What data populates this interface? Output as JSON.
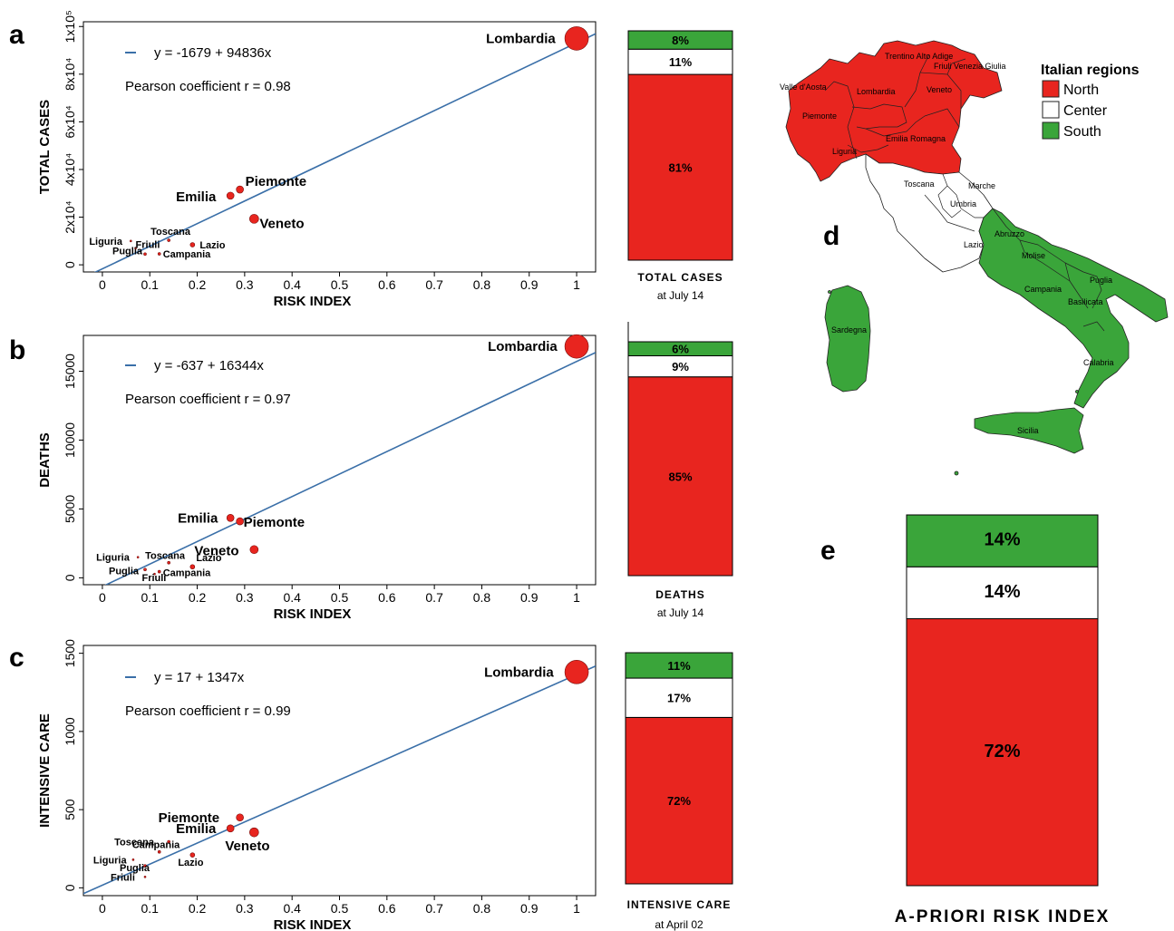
{
  "panels": {
    "a": "a",
    "b": "b",
    "c": "c",
    "d": "d",
    "e": "e"
  },
  "colors": {
    "north": "#e8251f",
    "center": "#ffffff",
    "south": "#3aa53a",
    "line": "#3a6fa8",
    "point": "#e8251f"
  },
  "chart_data": [
    {
      "type": "scatter",
      "panel": "a",
      "xlabel": "RISK INDEX",
      "ylabel": "TOTAL CASES",
      "xlim": [
        -0.04,
        1.04
      ],
      "ylim": [
        -3000,
        102000
      ],
      "xticks": [
        0,
        0.1,
        0.2,
        0.3,
        0.4,
        0.5,
        0.6,
        0.7,
        0.8,
        0.9,
        1
      ],
      "xtick_labels": [
        "0",
        "0.1",
        "0.2",
        "0.3",
        "0.4",
        "0.5",
        "0.6",
        "0.7",
        "0.8",
        "0.9",
        "1"
      ],
      "yticks": [
        0,
        20000,
        40000,
        60000,
        80000,
        100000
      ],
      "ytick_labels": [
        "0",
        "2x10⁴",
        "4x10⁴",
        "6x10⁴",
        "8x10⁴",
        "1x10⁵"
      ],
      "regression": {
        "intercept": -1679,
        "slope": 94836,
        "equation": "y = -1679 + 94836x",
        "pearson": "Pearson coefficient r = 0.98"
      },
      "points": [
        {
          "name": "Lombardia",
          "x": 1.0,
          "y": 95000,
          "size": 13,
          "label_style": "big",
          "dx": -100,
          "dy": 5
        },
        {
          "name": "Piemonte",
          "x": 0.29,
          "y": 31600,
          "size": 4,
          "label_style": "big",
          "dx": 6,
          "dy": -4
        },
        {
          "name": "Emilia",
          "x": 0.27,
          "y": 29000,
          "size": 4,
          "label_style": "big",
          "dx": -60,
          "dy": 6
        },
        {
          "name": "Veneto",
          "x": 0.32,
          "y": 19300,
          "size": 5,
          "label_style": "big",
          "dx": 6,
          "dy": 10
        },
        {
          "name": "Toscana",
          "x": 0.14,
          "y": 10300,
          "size": 1.5,
          "label_style": "small",
          "dx": -20,
          "dy": -6
        },
        {
          "name": "Lazio",
          "x": 0.19,
          "y": 8400,
          "size": 2.5,
          "label_style": "small",
          "dx": 8,
          "dy": 4
        },
        {
          "name": "Liguria",
          "x": 0.06,
          "y": 10000,
          "size": 1,
          "label_style": "small",
          "dx": -46,
          "dy": 4
        },
        {
          "name": "Friuli",
          "x": 0.07,
          "y": 7000,
          "size": 1,
          "label_style": "small",
          "dx": 0,
          "dy": 0
        },
        {
          "name": "Puglia",
          "x": 0.09,
          "y": 4500,
          "size": 1.5,
          "label_style": "small",
          "dx": -36,
          "dy": 0
        },
        {
          "name": "Campania",
          "x": 0.12,
          "y": 4600,
          "size": 1.5,
          "label_style": "small",
          "dx": 4,
          "dy": 4
        }
      ]
    },
    {
      "type": "scatter",
      "panel": "b",
      "xlabel": "RISK INDEX",
      "ylabel": "DEATHS",
      "xlim": [
        -0.04,
        1.04
      ],
      "ylim": [
        -500,
        17600
      ],
      "xticks": [
        0,
        0.1,
        0.2,
        0.3,
        0.4,
        0.5,
        0.6,
        0.7,
        0.8,
        0.9,
        1
      ],
      "xtick_labels": [
        "0",
        "0.1",
        "0.2",
        "0.3",
        "0.4",
        "0.5",
        "0.6",
        "0.7",
        "0.8",
        "0.9",
        "1"
      ],
      "yticks": [
        0,
        5000,
        10000,
        15000
      ],
      "ytick_labels": [
        "0",
        "5000",
        "10000",
        "15000"
      ],
      "regression": {
        "intercept": -637,
        "slope": 16344,
        "equation": "y =  -637 + 16344x",
        "pearson": "Pearson coefficient r = 0.97"
      },
      "points": [
        {
          "name": "Lombardia",
          "x": 1.0,
          "y": 16800,
          "size": 13,
          "label_style": "big",
          "dx": -98,
          "dy": 5
        },
        {
          "name": "Emilia",
          "x": 0.27,
          "y": 4350,
          "size": 4,
          "label_style": "big",
          "dx": -58,
          "dy": 5
        },
        {
          "name": "Piemonte",
          "x": 0.29,
          "y": 4100,
          "size": 4,
          "label_style": "big",
          "dx": 4,
          "dy": 6
        },
        {
          "name": "Veneto",
          "x": 0.32,
          "y": 2050,
          "size": 4.5,
          "label_style": "big",
          "dx": -66,
          "dy": 6
        },
        {
          "name": "Toscana",
          "x": 0.14,
          "y": 1100,
          "size": 1.5,
          "label_style": "small",
          "dx": -26,
          "dy": -4
        },
        {
          "name": "Lazio",
          "x": 0.19,
          "y": 800,
          "size": 2.5,
          "label_style": "small",
          "dx": 4,
          "dy": -6
        },
        {
          "name": "Liguria",
          "x": 0.075,
          "y": 1500,
          "size": 1,
          "label_style": "small",
          "dx": -46,
          "dy": 4
        },
        {
          "name": "Puglia",
          "x": 0.09,
          "y": 600,
          "size": 1.5,
          "label_style": "small",
          "dx": -40,
          "dy": 5
        },
        {
          "name": "Friuli",
          "x": 0.11,
          "y": 280,
          "size": 1,
          "label_style": "small",
          "dx": -14,
          "dy": 8
        },
        {
          "name": "Campania",
          "x": 0.12,
          "y": 450,
          "size": 1.5,
          "label_style": "small",
          "dx": 4,
          "dy": 5
        }
      ]
    },
    {
      "type": "scatter",
      "panel": "c",
      "xlabel": "RISK INDEX",
      "ylabel": "INTENSIVE CARE",
      "xlim": [
        -0.04,
        1.04
      ],
      "ylim": [
        -50,
        1550
      ],
      "xticks": [
        0,
        0.1,
        0.2,
        0.3,
        0.4,
        0.5,
        0.6,
        0.7,
        0.8,
        0.9,
        1
      ],
      "xtick_labels": [
        "0",
        "0.1",
        "0.2",
        "0.3",
        "0.4",
        "0.5",
        "0.6",
        "0.7",
        "0.8",
        "0.9",
        "1"
      ],
      "yticks": [
        0,
        500,
        1000,
        1500
      ],
      "ytick_labels": [
        "0",
        "500",
        "1000",
        "1500"
      ],
      "regression": {
        "intercept": 17,
        "slope": 1347,
        "equation": "y =  17 + 1347x",
        "pearson": "Pearson coefficient r = 0.99"
      },
      "points": [
        {
          "name": "Lombardia",
          "x": 1.0,
          "y": 1380,
          "size": 13,
          "label_style": "big",
          "dx": -102,
          "dy": 5
        },
        {
          "name": "Piemonte",
          "x": 0.29,
          "y": 450,
          "size": 4,
          "label_style": "big",
          "dx": -90,
          "dy": 5
        },
        {
          "name": "Emilia",
          "x": 0.27,
          "y": 380,
          "size": 4,
          "label_style": "big",
          "dx": -60,
          "dy": 5
        },
        {
          "name": "Veneto",
          "x": 0.32,
          "y": 355,
          "size": 5,
          "label_style": "big",
          "dx": -32,
          "dy": 20
        },
        {
          "name": "Toscana",
          "x": 0.14,
          "y": 295,
          "size": 1.5,
          "label_style": "small",
          "dx": -60,
          "dy": 4
        },
        {
          "name": "Campania",
          "x": 0.12,
          "y": 230,
          "size": 1.5,
          "label_style": "small",
          "dx": -30,
          "dy": -4
        },
        {
          "name": "Lazio",
          "x": 0.19,
          "y": 210,
          "size": 2.5,
          "label_style": "small",
          "dx": -16,
          "dy": 12
        },
        {
          "name": "Liguria",
          "x": 0.065,
          "y": 180,
          "size": 1,
          "label_style": "small",
          "dx": -44,
          "dy": 4
        },
        {
          "name": "Puglia",
          "x": 0.09,
          "y": 140,
          "size": 1.5,
          "label_style": "small",
          "dx": -28,
          "dy": 6
        },
        {
          "name": "Friuli",
          "x": 0.09,
          "y": 70,
          "size": 1,
          "label_style": "small",
          "dx": -38,
          "dy": 4
        }
      ]
    },
    {
      "type": "bar",
      "stacked": true,
      "panel": "a-bar",
      "title": "TOTAL CASES",
      "subtitle": "at July 14",
      "segments": [
        {
          "name": "North",
          "value": 81,
          "label": "81%"
        },
        {
          "name": "Center",
          "value": 11,
          "label": "11%"
        },
        {
          "name": "South",
          "value": 8,
          "label": "8%"
        }
      ]
    },
    {
      "type": "bar",
      "stacked": true,
      "panel": "b-bar",
      "title": "DEATHS",
      "subtitle": "at July 14",
      "segments": [
        {
          "name": "North",
          "value": 85,
          "label": "85%"
        },
        {
          "name": "Center",
          "value": 9,
          "label": "9%"
        },
        {
          "name": "South",
          "value": 6,
          "label": "6%"
        }
      ]
    },
    {
      "type": "bar",
      "stacked": true,
      "panel": "c-bar",
      "title": "INTENSIVE CARE",
      "subtitle": "at April 02",
      "segments": [
        {
          "name": "North",
          "value": 72,
          "label": "72%"
        },
        {
          "name": "Center",
          "value": 17,
          "label": "17%"
        },
        {
          "name": "South",
          "value": 11,
          "label": "11%"
        }
      ]
    },
    {
      "type": "bar",
      "stacked": true,
      "panel": "e",
      "title": "A-PRIORI RISK INDEX",
      "segments": [
        {
          "name": "North",
          "value": 72,
          "label": "72%"
        },
        {
          "name": "Center",
          "value": 14,
          "label": "14%"
        },
        {
          "name": "South",
          "value": 14,
          "label": "14%"
        }
      ]
    }
  ],
  "map": {
    "legend_title": "Italian regions",
    "legend": [
      {
        "name": "North",
        "color": "#e8251f"
      },
      {
        "name": "Center",
        "color": "#ffffff"
      },
      {
        "name": "South",
        "color": "#3aa53a"
      }
    ],
    "regions": {
      "valle_daosta": "Valle d'Aosta",
      "piemonte": "Piemonte",
      "lombardia": "Lombardia",
      "trentino": "Trentino Alto Adige",
      "friuli": "Friuli Venezia Giulia",
      "veneto": "Veneto",
      "liguria": "Liguria",
      "emilia": "Emilia Romagna",
      "toscana": "Toscana",
      "marche": "Marche",
      "umbria": "Umbria",
      "lazio": "Lazio",
      "abruzzo": "Abruzzo",
      "molise": "Molise",
      "campania": "Campania",
      "puglia": "Puglia",
      "basilicata": "Basilicata",
      "calabria": "Calabria",
      "sicilia": "Sicilia",
      "sardegna": "Sardegna"
    }
  }
}
